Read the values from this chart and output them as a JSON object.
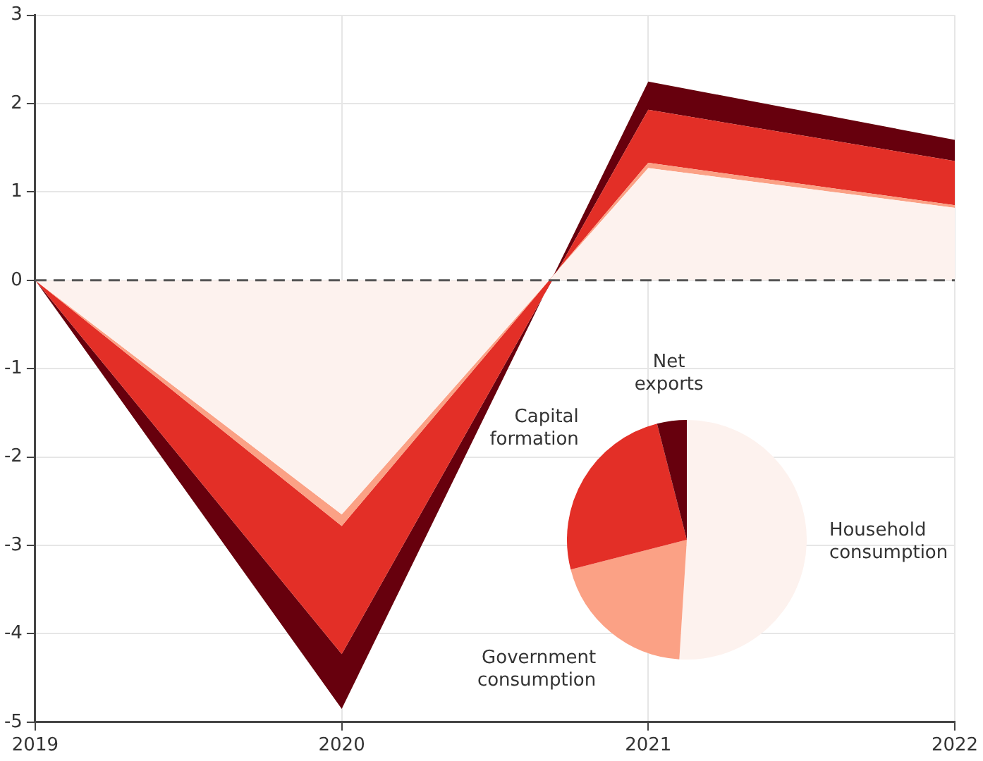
{
  "chart_data": [
    {
      "type": "area",
      "stacked": true,
      "x": [
        2019,
        2020,
        2021,
        2022
      ],
      "xlim": [
        2019,
        2022
      ],
      "xticks": [
        2019,
        2020,
        2021,
        2022
      ],
      "ylim": [
        -5,
        3
      ],
      "yticks": [
        -5,
        -4,
        -3,
        -2,
        -1,
        0,
        1,
        2,
        3
      ],
      "grid": true,
      "legend": false,
      "series": [
        {
          "color": "#fdf2ee",
          "values": [
            0,
            -2.65,
            1.27,
            0.82
          ]
        },
        {
          "color": "#fba185",
          "values": [
            0,
            -0.13,
            0.06,
            0.03
          ]
        },
        {
          "color": "#e32f27",
          "values": [
            0,
            -1.45,
            0.6,
            0.5
          ]
        },
        {
          "color": "#67000d",
          "values": [
            0,
            -0.62,
            0.32,
            0.24
          ]
        }
      ],
      "ref_lines": [
        {
          "axis": "y",
          "value": 0,
          "color": "#555555",
          "line_style": "dashed"
        }
      ]
    },
    {
      "type": "pie",
      "categories": [
        "Household consumption",
        "Government consumption",
        "Capital formation",
        "Net exports"
      ],
      "values": [
        51,
        20,
        25,
        4
      ],
      "colors": [
        "#fdf2ee",
        "#fba185",
        "#e32f27",
        "#67000d"
      ]
    }
  ]
}
